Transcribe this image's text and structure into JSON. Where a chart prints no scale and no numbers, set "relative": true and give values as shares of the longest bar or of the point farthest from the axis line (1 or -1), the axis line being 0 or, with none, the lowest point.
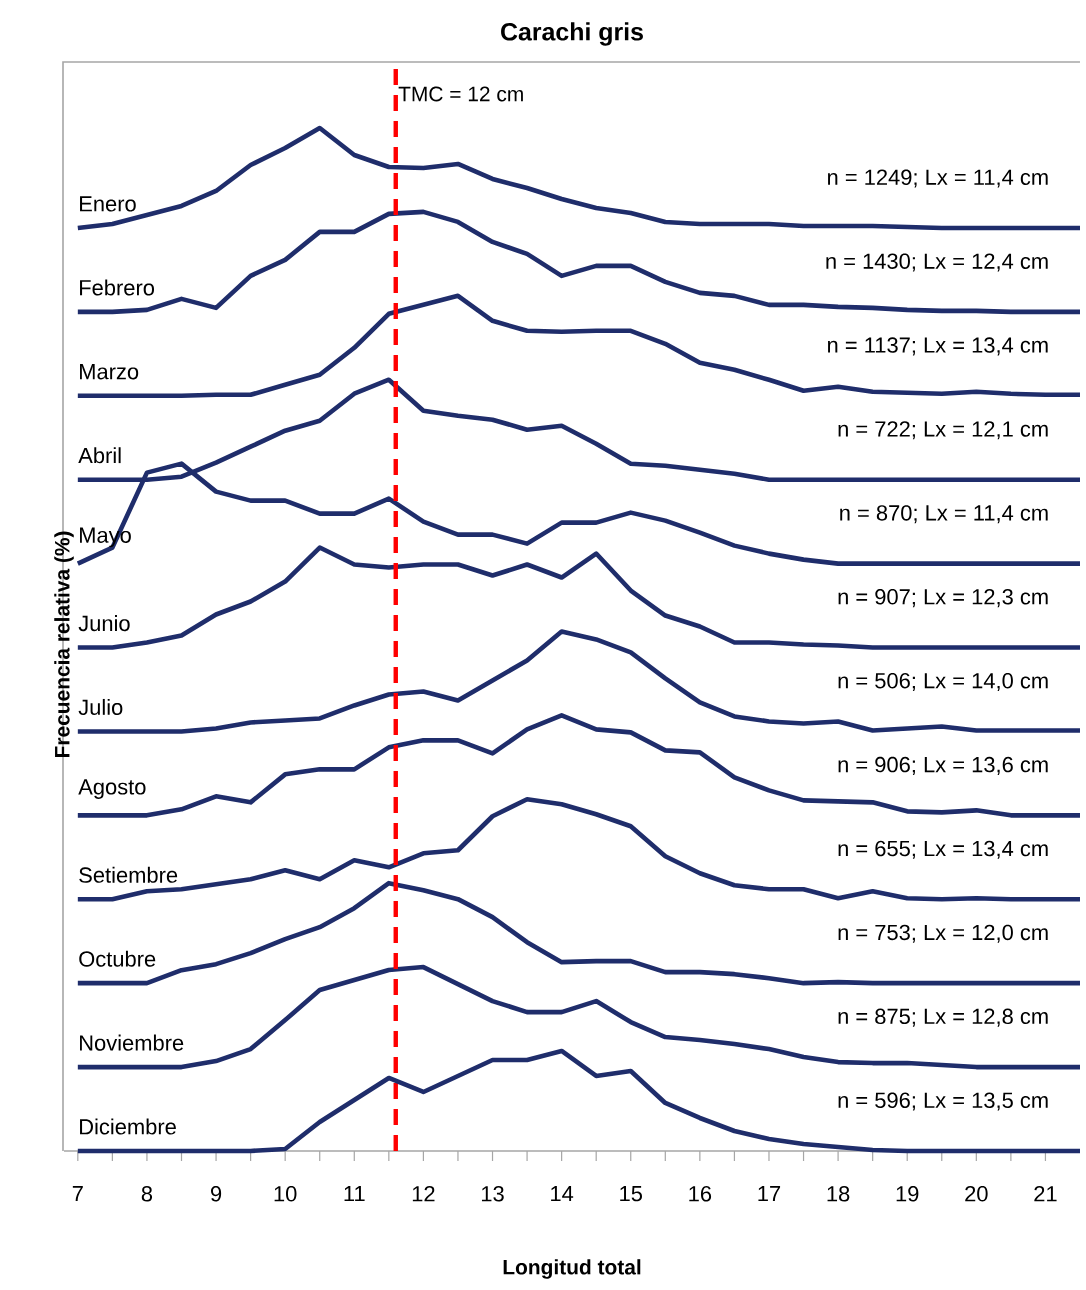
{
  "chart_data": [
    {
      "type": "line",
      "relative": true,
      "title": "Carachi gris",
      "tick_labels": false,
      "x": [
        7,
        7.5,
        8,
        8.5,
        9,
        9.5,
        10,
        10.5,
        11,
        11.5,
        12,
        12.5,
        13,
        13.5,
        14,
        14.5,
        15,
        15.5,
        16,
        16.5,
        17,
        17.5,
        18,
        18.5,
        19,
        19.5,
        20,
        20.5,
        21,
        21.5
      ],
      "series": [
        {
          "name": "Enero",
          "color": "#1f2d6b",
          "values": [
            0,
            0.04,
            0.13,
            0.22,
            0.37,
            0.63,
            0.8,
            1,
            0.73,
            0.61,
            0.6,
            0.64,
            0.49,
            0.4,
            0.29,
            0.2,
            0.15,
            0.06,
            0.04,
            0.04,
            0.04,
            0.02,
            0.02,
            0.02,
            0.01,
            0,
            0,
            0,
            0,
            0
          ]
        }
      ],
      "annotations": [
        "n = 1249; Lx = 11,4 cm"
      ]
    },
    {
      "type": "line",
      "relative": true,
      "tick_labels": false,
      "x": [
        7,
        7.5,
        8,
        8.5,
        9,
        9.5,
        10,
        10.5,
        11,
        11.5,
        12,
        12.5,
        13,
        13.5,
        14,
        14.5,
        15,
        15.5,
        16,
        16.5,
        17,
        17.5,
        18,
        18.5,
        19,
        19.5,
        20,
        20.5,
        21,
        21.5
      ],
      "series": [
        {
          "name": "Febrero",
          "color": "#1f2d6b",
          "values": [
            0,
            0,
            0.02,
            0.13,
            0.04,
            0.36,
            0.52,
            0.8,
            0.8,
            0.98,
            1,
            0.9,
            0.7,
            0.58,
            0.36,
            0.46,
            0.46,
            0.3,
            0.19,
            0.16,
            0.07,
            0.07,
            0.05,
            0.04,
            0.02,
            0.01,
            0.01,
            0,
            0,
            0
          ]
        }
      ],
      "annotations": [
        "n = 1430; Lx = 12,4 cm"
      ]
    },
    {
      "type": "line",
      "relative": true,
      "tick_labels": false,
      "x": [
        7,
        7.5,
        8,
        8.5,
        9,
        9.5,
        10,
        10.5,
        11,
        11.5,
        12,
        12.5,
        13,
        13.5,
        14,
        14.5,
        15,
        15.5,
        16,
        16.5,
        17,
        17.5,
        18,
        18.5,
        19,
        19.5,
        20,
        20.5,
        21,
        21.5
      ],
      "series": [
        {
          "name": "Marzo",
          "color": "#1f2d6b",
          "values": [
            0,
            0,
            0,
            0,
            0.01,
            0.01,
            0.11,
            0.21,
            0.48,
            0.82,
            0.91,
            1,
            0.75,
            0.65,
            0.64,
            0.65,
            0.65,
            0.52,
            0.33,
            0.26,
            0.16,
            0.05,
            0.09,
            0.04,
            0.03,
            0.02,
            0.04,
            0.02,
            0.01,
            0.01
          ]
        }
      ],
      "annotations": [
        "n = 1137; Lx = 13,4 cm"
      ]
    },
    {
      "type": "line",
      "relative": true,
      "tick_labels": false,
      "x": [
        7,
        7.5,
        8,
        8.5,
        9,
        9.5,
        10,
        10.5,
        11,
        11.5,
        12,
        12.5,
        13,
        13.5,
        14,
        14.5,
        15,
        15.5,
        16,
        16.5,
        17,
        17.5,
        18,
        18.5,
        19,
        19.5,
        20,
        20.5,
        21,
        21.5
      ],
      "series": [
        {
          "name": "Abril",
          "color": "#1f2d6b",
          "values": [
            0,
            0,
            0,
            0.03,
            0.17,
            0.33,
            0.49,
            0.59,
            0.86,
            1,
            0.69,
            0.64,
            0.6,
            0.5,
            0.54,
            0.36,
            0.16,
            0.14,
            0.1,
            0.06,
            0,
            0,
            0,
            0,
            0,
            0,
            0,
            0,
            0,
            0
          ]
        }
      ],
      "annotations": [
        "n = 722;  Lx = 12,1 cm"
      ]
    },
    {
      "type": "line",
      "relative": true,
      "tick_labels": false,
      "x": [
        7,
        7.5,
        8,
        8.5,
        9,
        9.5,
        10,
        10.5,
        11,
        11.5,
        12,
        12.5,
        13,
        13.5,
        14,
        14.5,
        15,
        15.5,
        16,
        16.5,
        17,
        17.5,
        18,
        18.5,
        19,
        19.5,
        20,
        20.5,
        21,
        21.5
      ],
      "series": [
        {
          "name": "Mayo",
          "color": "#1f2d6b",
          "values": [
            0,
            0.16,
            0.91,
            1,
            0.72,
            0.63,
            0.63,
            0.5,
            0.5,
            0.65,
            0.42,
            0.29,
            0.29,
            0.2,
            0.41,
            0.41,
            0.51,
            0.43,
            0.31,
            0.18,
            0.1,
            0.04,
            0,
            0,
            0,
            0,
            0,
            0,
            0,
            0
          ]
        }
      ],
      "annotations": [
        "n = 870;  Lx = 11,4 cm"
      ]
    },
    {
      "type": "line",
      "relative": true,
      "ylabel": "Frecuencia relativa (%)",
      "tick_labels": false,
      "x": [
        7,
        7.5,
        8,
        8.5,
        9,
        9.5,
        10,
        10.5,
        11,
        11.5,
        12,
        12.5,
        13,
        13.5,
        14,
        14.5,
        15,
        15.5,
        16,
        16.5,
        17,
        17.5,
        18,
        18.5,
        19,
        19.5,
        20,
        20.5,
        21,
        21.5
      ],
      "series": [
        {
          "name": "Junio",
          "color": "#1f2d6b",
          "values": [
            0,
            0,
            0.05,
            0.12,
            0.33,
            0.46,
            0.66,
            1,
            0.83,
            0.8,
            0.83,
            0.83,
            0.72,
            0.83,
            0.7,
            0.94,
            0.57,
            0.32,
            0.21,
            0.05,
            0.05,
            0.03,
            0.02,
            0,
            0,
            0,
            0,
            0,
            0,
            0
          ]
        }
      ],
      "annotations": [
        "n = 907; Lx = 12,3 cm"
      ]
    },
    {
      "type": "line",
      "relative": true,
      "tick_labels": false,
      "x": [
        7,
        7.5,
        8,
        8.5,
        9,
        9.5,
        10,
        10.5,
        11,
        11.5,
        12,
        12.5,
        13,
        13.5,
        14,
        14.5,
        15,
        15.5,
        16,
        16.5,
        17,
        17.5,
        18,
        18.5,
        19,
        19.5,
        20,
        20.5,
        21,
        21.5
      ],
      "series": [
        {
          "name": "Julio",
          "color": "#1f2d6b",
          "values": [
            0,
            0,
            0,
            0,
            0.03,
            0.09,
            0.11,
            0.13,
            0.26,
            0.37,
            0.4,
            0.31,
            0.51,
            0.71,
            1,
            0.92,
            0.79,
            0.53,
            0.29,
            0.15,
            0.1,
            0.08,
            0.1,
            0.01,
            0.03,
            0.05,
            0.01,
            0.01,
            0.01,
            0.01
          ]
        }
      ],
      "annotations": [
        "n = 506;  Lx = 14,0 cm"
      ]
    },
    {
      "type": "line",
      "relative": true,
      "tick_labels": false,
      "x": [
        7,
        7.5,
        8,
        8.5,
        9,
        9.5,
        10,
        10.5,
        11,
        11.5,
        12,
        12.5,
        13,
        13.5,
        14,
        14.5,
        15,
        15.5,
        16,
        16.5,
        17,
        17.5,
        18,
        18.5,
        19,
        19.5,
        20,
        20.5,
        21,
        21.5
      ],
      "series": [
        {
          "name": "Agosto",
          "color": "#1f2d6b",
          "values": [
            0,
            0,
            0,
            0.06,
            0.19,
            0.13,
            0.41,
            0.46,
            0.46,
            0.68,
            0.75,
            0.75,
            0.62,
            0.86,
            1,
            0.86,
            0.83,
            0.65,
            0.63,
            0.38,
            0.25,
            0.15,
            0.14,
            0.13,
            0.04,
            0.03,
            0.05,
            0,
            0,
            0
          ]
        }
      ],
      "annotations": [
        "n = 906; Lx = 13,6 cm"
      ]
    },
    {
      "type": "line",
      "relative": true,
      "tick_labels": false,
      "x": [
        7,
        7.5,
        8,
        8.5,
        9,
        9.5,
        10,
        10.5,
        11,
        11.5,
        12,
        12.5,
        13,
        13.5,
        14,
        14.5,
        15,
        15.5,
        16,
        16.5,
        17,
        17.5,
        18,
        18.5,
        19,
        19.5,
        20,
        20.5,
        21,
        21.5
      ],
      "series": [
        {
          "name": "Setiembre",
          "color": "#1f2d6b",
          "values": [
            0,
            0,
            0.08,
            0.1,
            0.15,
            0.2,
            0.29,
            0.2,
            0.39,
            0.32,
            0.46,
            0.49,
            0.83,
            1,
            0.95,
            0.85,
            0.73,
            0.43,
            0.26,
            0.14,
            0.1,
            0.1,
            0.01,
            0.08,
            0.01,
            0,
            0.01,
            0,
            0,
            0
          ]
        }
      ],
      "annotations": [
        "n = 655; Lx = 13,4 cm"
      ]
    },
    {
      "type": "line",
      "relative": true,
      "tick_labels": false,
      "x": [
        7,
        7.5,
        8,
        8.5,
        9,
        9.5,
        10,
        10.5,
        11,
        11.5,
        12,
        12.5,
        13,
        13.5,
        14,
        14.5,
        15,
        15.5,
        16,
        16.5,
        17,
        17.5,
        18,
        18.5,
        19,
        19.5,
        20,
        20.5,
        21,
        21.5
      ],
      "series": [
        {
          "name": "Octubre",
          "color": "#1f2d6b",
          "values": [
            0,
            0,
            0,
            0.13,
            0.19,
            0.3,
            0.44,
            0.56,
            0.75,
            1,
            0.93,
            0.84,
            0.66,
            0.41,
            0.21,
            0.22,
            0.22,
            0.11,
            0.11,
            0.09,
            0.05,
            0,
            0.01,
            0,
            0,
            0,
            0,
            0,
            0,
            0
          ]
        }
      ],
      "annotations": [
        "n = 753;  Lx = 12,0 cm"
      ]
    },
    {
      "type": "line",
      "relative": true,
      "tick_labels": false,
      "x": [
        7,
        7.5,
        8,
        8.5,
        9,
        9.5,
        10,
        10.5,
        11,
        11.5,
        12,
        12.5,
        13,
        13.5,
        14,
        14.5,
        15,
        15.5,
        16,
        16.5,
        17,
        17.5,
        18,
        18.5,
        19,
        19.5,
        20,
        20.5,
        21,
        21.5
      ],
      "series": [
        {
          "name": "Noviembre",
          "color": "#1f2d6b",
          "values": [
            0,
            0,
            0,
            0,
            0.06,
            0.18,
            0.47,
            0.77,
            0.87,
            0.97,
            1,
            0.83,
            0.66,
            0.55,
            0.55,
            0.66,
            0.45,
            0.3,
            0.27,
            0.23,
            0.18,
            0.1,
            0.05,
            0.04,
            0.04,
            0.02,
            0,
            0,
            0,
            0
          ]
        }
      ],
      "annotations": [
        "n = 875;  Lx = 12,8 cm"
      ]
    },
    {
      "type": "line",
      "relative": true,
      "xlabel": "Longitud total",
      "xlim": [
        6.8,
        21.5
      ],
      "xticks": [
        7,
        8,
        9,
        10,
        11,
        12,
        13,
        14,
        15,
        16,
        17,
        18,
        19,
        20,
        21
      ],
      "tick_labels": "x",
      "x": [
        7,
        7.5,
        8,
        8.5,
        9,
        9.5,
        10,
        10.5,
        11,
        11.5,
        12,
        12.5,
        13,
        13.5,
        14,
        14.5,
        15,
        15.5,
        16,
        16.5,
        17,
        17.5,
        18,
        18.5,
        19,
        19.5,
        20,
        20.5,
        21,
        21.5
      ],
      "series": [
        {
          "name": "Diciembre",
          "color": "#1f2d6b",
          "values": [
            0,
            0,
            0,
            0,
            0,
            0,
            0.02,
            0.29,
            0.51,
            0.73,
            0.59,
            0.75,
            0.91,
            0.91,
            1,
            0.75,
            0.8,
            0.48,
            0.33,
            0.2,
            0.12,
            0.07,
            0.04,
            0.01,
            0,
            0,
            0,
            0,
            0,
            0
          ]
        }
      ],
      "annotations": [
        "n = 596;  Lx = 13,5 cm"
      ],
      "ref_lines": [
        {
          "axis": "x",
          "value": 11.6,
          "label": "TMC = 12 cm",
          "color": "#ff0000",
          "line_style": "dashed"
        }
      ]
    }
  ]
}
